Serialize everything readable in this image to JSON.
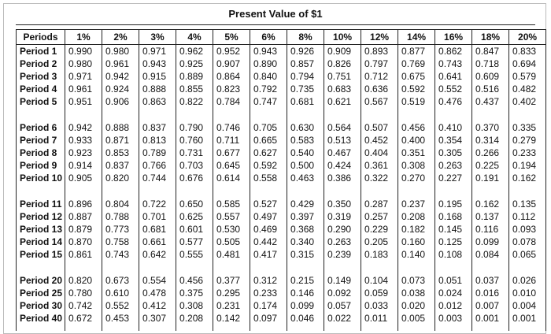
{
  "title": "Present Value of $1",
  "table": {
    "header": [
      "Periods",
      "1%",
      "2%",
      "3%",
      "4%",
      "5%",
      "6%",
      "8%",
      "10%",
      "12%",
      "14%",
      "16%",
      "18%",
      "20%"
    ],
    "groups": [
      [
        [
          "Period 1",
          "0.990",
          "0.980",
          "0.971",
          "0.962",
          "0.952",
          "0.943",
          "0.926",
          "0.909",
          "0.893",
          "0.877",
          "0.862",
          "0.847",
          "0.833"
        ],
        [
          "Period 2",
          "0.980",
          "0.961",
          "0.943",
          "0.925",
          "0.907",
          "0.890",
          "0.857",
          "0.826",
          "0.797",
          "0.769",
          "0.743",
          "0.718",
          "0.694"
        ],
        [
          "Period 3",
          "0.971",
          "0.942",
          "0.915",
          "0.889",
          "0.864",
          "0.840",
          "0.794",
          "0.751",
          "0.712",
          "0.675",
          "0.641",
          "0.609",
          "0.579"
        ],
        [
          "Period 4",
          "0.961",
          "0.924",
          "0.888",
          "0.855",
          "0.823",
          "0.792",
          "0.735",
          "0.683",
          "0.636",
          "0.592",
          "0.552",
          "0.516",
          "0.482"
        ],
        [
          "Period 5",
          "0.951",
          "0.906",
          "0.863",
          "0.822",
          "0.784",
          "0.747",
          "0.681",
          "0.621",
          "0.567",
          "0.519",
          "0.476",
          "0.437",
          "0.402"
        ]
      ],
      [
        [
          "Period 6",
          "0.942",
          "0.888",
          "0.837",
          "0.790",
          "0.746",
          "0.705",
          "0.630",
          "0.564",
          "0.507",
          "0.456",
          "0.410",
          "0.370",
          "0.335"
        ],
        [
          "Period 7",
          "0.933",
          "0.871",
          "0.813",
          "0.760",
          "0.711",
          "0.665",
          "0.583",
          "0.513",
          "0.452",
          "0.400",
          "0.354",
          "0.314",
          "0.279"
        ],
        [
          "Period 8",
          "0.923",
          "0.853",
          "0.789",
          "0.731",
          "0.677",
          "0.627",
          "0.540",
          "0.467",
          "0.404",
          "0.351",
          "0.305",
          "0.266",
          "0.233"
        ],
        [
          "Period 9",
          "0.914",
          "0.837",
          "0.766",
          "0.703",
          "0.645",
          "0.592",
          "0.500",
          "0.424",
          "0.361",
          "0.308",
          "0.263",
          "0.225",
          "0.194"
        ],
        [
          "Period 10",
          "0.905",
          "0.820",
          "0.744",
          "0.676",
          "0.614",
          "0.558",
          "0.463",
          "0.386",
          "0.322",
          "0.270",
          "0.227",
          "0.191",
          "0.162"
        ]
      ],
      [
        [
          "Period 11",
          "0.896",
          "0.804",
          "0.722",
          "0.650",
          "0.585",
          "0.527",
          "0.429",
          "0.350",
          "0.287",
          "0.237",
          "0.195",
          "0.162",
          "0.135"
        ],
        [
          "Period 12",
          "0.887",
          "0.788",
          "0.701",
          "0.625",
          "0.557",
          "0.497",
          "0.397",
          "0.319",
          "0.257",
          "0.208",
          "0.168",
          "0.137",
          "0.112"
        ],
        [
          "Period 13",
          "0.879",
          "0.773",
          "0.681",
          "0.601",
          "0.530",
          "0.469",
          "0.368",
          "0.290",
          "0.229",
          "0.182",
          "0.145",
          "0.116",
          "0.093"
        ],
        [
          "Period 14",
          "0.870",
          "0.758",
          "0.661",
          "0.577",
          "0.505",
          "0.442",
          "0.340",
          "0.263",
          "0.205",
          "0.160",
          "0.125",
          "0.099",
          "0.078"
        ],
        [
          "Period 15",
          "0.861",
          "0.743",
          "0.642",
          "0.555",
          "0.481",
          "0.417",
          "0.315",
          "0.239",
          "0.183",
          "0.140",
          "0.108",
          "0.084",
          "0.065"
        ]
      ],
      [
        [
          "Period 20",
          "0.820",
          "0.673",
          "0.554",
          "0.456",
          "0.377",
          "0.312",
          "0.215",
          "0.149",
          "0.104",
          "0.073",
          "0.051",
          "0.037",
          "0.026"
        ],
        [
          "Period 25",
          "0.780",
          "0.610",
          "0.478",
          "0.375",
          "0.295",
          "0.233",
          "0.146",
          "0.092",
          "0.059",
          "0.038",
          "0.024",
          "0.016",
          "0.010"
        ],
        [
          "Period 30",
          "0.742",
          "0.552",
          "0.412",
          "0.308",
          "0.231",
          "0.174",
          "0.099",
          "0.057",
          "0.033",
          "0.020",
          "0.012",
          "0.007",
          "0.004"
        ],
        [
          "Period 40",
          "0.672",
          "0.453",
          "0.307",
          "0.208",
          "0.142",
          "0.097",
          "0.046",
          "0.022",
          "0.011",
          "0.005",
          "0.003",
          "0.001",
          "0.001"
        ]
      ]
    ]
  }
}
